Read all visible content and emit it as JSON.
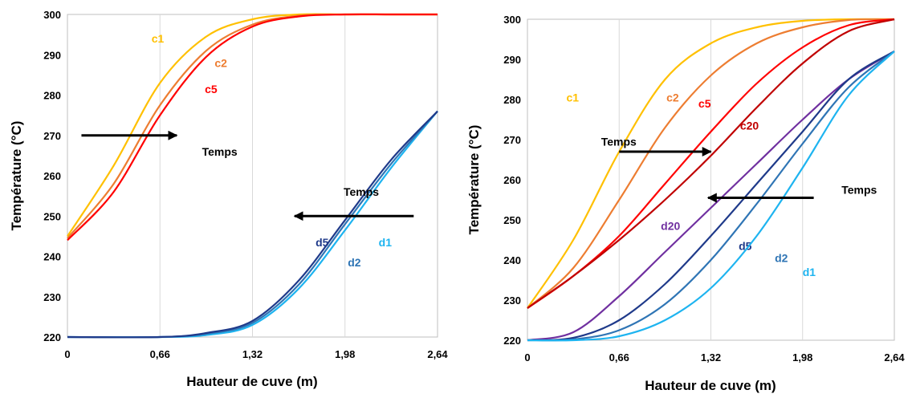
{
  "charts": [
    {
      "type": "line",
      "ylabel": "Température (°C)",
      "xlabel": "Hauteur de cuve (m)",
      "xlim": [
        0,
        2.64
      ],
      "ylim": [
        220,
        300
      ],
      "x_ticks": [
        "0",
        "0,66",
        "1,32",
        "1,98",
        "2,64"
      ],
      "y_ticks": [
        "220",
        "230",
        "240",
        "250",
        "260",
        "270",
        "280",
        "290",
        "300"
      ],
      "grid": "vertical",
      "series": [
        {
          "name": "c1",
          "color": "#FFC000",
          "x": [
            0,
            0.33,
            0.66,
            0.99,
            1.32,
            1.65,
            1.98,
            2.31,
            2.64
          ],
          "y": [
            245,
            262.5,
            283,
            294.5,
            298.8,
            300,
            300,
            300,
            300
          ]
        },
        {
          "name": "c2",
          "color": "#ED7D31",
          "x": [
            0,
            0.33,
            0.66,
            0.99,
            1.32,
            1.65,
            1.98,
            2.31,
            2.64
          ],
          "y": [
            244.5,
            258,
            277.5,
            291,
            297.5,
            299.7,
            300,
            300,
            300
          ]
        },
        {
          "name": "c5",
          "color": "#FF0000",
          "x": [
            0,
            0.33,
            0.66,
            0.99,
            1.32,
            1.65,
            1.98,
            2.31,
            2.64
          ],
          "y": [
            244,
            256,
            275,
            289.5,
            297,
            299.5,
            300,
            300,
            300
          ]
        },
        {
          "name": "d1",
          "color": "#1EB4F0",
          "x": [
            0,
            0.66,
            0.99,
            1.32,
            1.65,
            1.98,
            2.31,
            2.64
          ],
          "y": [
            220,
            220,
            220.5,
            223,
            232,
            246.5,
            262,
            276
          ]
        },
        {
          "name": "d2",
          "color": "#2F75B5",
          "x": [
            0,
            0.66,
            0.99,
            1.32,
            1.65,
            1.98,
            2.31,
            2.64
          ],
          "y": [
            220,
            220,
            220.8,
            223.5,
            233,
            248,
            263,
            276
          ]
        },
        {
          "name": "d5",
          "color": "#1F3A8A",
          "x": [
            0,
            0.66,
            0.99,
            1.32,
            1.65,
            1.98,
            2.31,
            2.64
          ],
          "y": [
            220,
            220,
            221,
            224,
            234,
            249,
            264,
            276
          ]
        }
      ],
      "annotations": [
        {
          "text": "Temps",
          "direction": "right",
          "x_from": 0.1,
          "x_to": 0.78,
          "y": 270
        },
        {
          "text": "Temps",
          "direction": "left",
          "x_from": 2.47,
          "x_to": 1.62,
          "y": 250
        }
      ]
    },
    {
      "type": "line",
      "ylabel": "Température (°C)",
      "xlabel": "Hauteur de cuve (m)",
      "xlim": [
        0,
        2.64
      ],
      "ylim": [
        220,
        300
      ],
      "x_ticks": [
        "0",
        "0,66",
        "1,32",
        "1,98",
        "2,64"
      ],
      "y_ticks": [
        "220",
        "230",
        "240",
        "250",
        "260",
        "270",
        "280",
        "290",
        "300"
      ],
      "grid": "vertical",
      "series": [
        {
          "name": "c1",
          "color": "#FFC000",
          "x": [
            0,
            0.33,
            0.66,
            0.99,
            1.32,
            1.65,
            1.98,
            2.31,
            2.64
          ],
          "y": [
            228,
            245,
            267,
            285,
            294,
            298,
            299.6,
            300,
            300
          ]
        },
        {
          "name": "c2",
          "color": "#ED7D31",
          "x": [
            0,
            0.33,
            0.66,
            0.99,
            1.32,
            1.65,
            1.98,
            2.31,
            2.64
          ],
          "y": [
            228,
            238,
            255,
            273,
            286,
            294,
            298,
            299.8,
            300
          ]
        },
        {
          "name": "c5",
          "color": "#FF0000",
          "x": [
            0,
            0.33,
            0.66,
            0.99,
            1.32,
            1.65,
            1.98,
            2.31,
            2.64
          ],
          "y": [
            228,
            236,
            246,
            259,
            272,
            284,
            293,
            298.5,
            300
          ]
        },
        {
          "name": "c20",
          "color": "#C00000",
          "x": [
            0,
            0.33,
            0.66,
            0.99,
            1.32,
            1.65,
            1.98,
            2.31,
            2.64
          ],
          "y": [
            228,
            236,
            245,
            255,
            266,
            278,
            289,
            297,
            300
          ]
        },
        {
          "name": "d20",
          "color": "#7030A0",
          "x": [
            0,
            0.33,
            0.66,
            0.99,
            1.32,
            1.65,
            1.98,
            2.31,
            2.64
          ],
          "y": [
            220,
            222,
            231,
            242,
            253,
            264,
            275,
            285,
            292
          ]
        },
        {
          "name": "d5",
          "color": "#1F3A8A",
          "x": [
            0,
            0.33,
            0.66,
            0.99,
            1.32,
            1.65,
            1.98,
            2.31,
            2.64
          ],
          "y": [
            220,
            220.6,
            225,
            234,
            246,
            259,
            272,
            285,
            292
          ]
        },
        {
          "name": "d2",
          "color": "#2F75B5",
          "x": [
            0,
            0.33,
            0.66,
            0.99,
            1.32,
            1.65,
            1.98,
            2.31,
            2.64
          ],
          "y": [
            220,
            220.2,
            222.5,
            229,
            240,
            254,
            269,
            283,
            292
          ]
        },
        {
          "name": "d1",
          "color": "#1EB4F0",
          "x": [
            0,
            0.33,
            0.66,
            0.99,
            1.32,
            1.65,
            1.98,
            2.31,
            2.64
          ],
          "y": [
            220,
            220,
            221,
            225,
            233,
            246,
            263,
            281,
            292
          ]
        }
      ],
      "annotations": [
        {
          "text": "Temps",
          "direction": "right",
          "x_from": 0.66,
          "x_to": 1.32,
          "y": 267
        },
        {
          "text": "Temps",
          "direction": "left",
          "x_from": 2.06,
          "x_to": 1.3,
          "y": 255.5
        }
      ]
    }
  ]
}
